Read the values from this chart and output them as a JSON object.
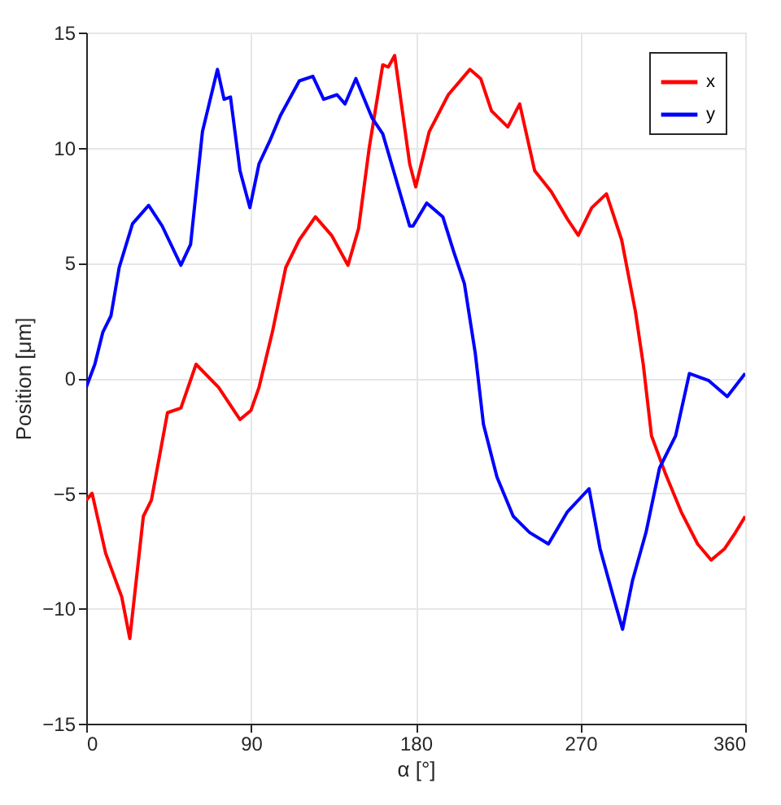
{
  "chart_data": {
    "type": "line",
    "xlabel": "α [°]",
    "ylabel": "Position [μm]",
    "xlim": [
      0,
      360
    ],
    "xticks": [
      0,
      90,
      180,
      270,
      360
    ],
    "ylim": [
      -15,
      15
    ],
    "yticks": [
      -15,
      -10,
      -5,
      0,
      5,
      10,
      15
    ],
    "grid": true,
    "legend": "top right",
    "line_style": "solid",
    "marker": "none",
    "series": [
      {
        "name": "x",
        "color": "#ff0000",
        "x": [
          0,
          3.2,
          10.6,
          19.4,
          23.8,
          31.2,
          35.6,
          44.4,
          51.7,
          60,
          72.3,
          84,
          90,
          94.4,
          101.7,
          109,
          116.4,
          125.2,
          134,
          143,
          148.8,
          154.6,
          162,
          165,
          168.5,
          176.7,
          180,
          187.4,
          197.8,
          209.6,
          215.5,
          221.4,
          230.3,
          236.8,
          245,
          254,
          262.9,
          268.8,
          276.2,
          284.2,
          292.5,
          300,
          304.3,
          308.8,
          316.2,
          325,
          334,
          341.4,
          348.8,
          354.7,
          360
        ],
        "values": [
          -5.3,
          -5.0,
          -7.6,
          -9.5,
          -11.3,
          -6.0,
          -5.3,
          -1.5,
          -1.3,
          0.6,
          -0.4,
          -1.8,
          -1.4,
          -0.4,
          2.0,
          4.8,
          6.0,
          7.0,
          6.2,
          4.9,
          6.5,
          10,
          13.6,
          13.5,
          14.0,
          9.3,
          8.3,
          10.7,
          12.3,
          13.4,
          13.0,
          11.6,
          10.9,
          11.9,
          9.0,
          8.1,
          6.9,
          6.2,
          7.4,
          8.0,
          6.0,
          2.9,
          0.6,
          -2.5,
          -4.1,
          -5.8,
          -7.2,
          -7.9,
          -7.4,
          -6.7,
          -6.0
        ]
      },
      {
        "name": "y",
        "color": "#0000ff",
        "x": [
          0,
          4.7,
          9.1,
          13.5,
          18,
          25.3,
          34.1,
          41.5,
          51.7,
          57,
          63.5,
          71.7,
          75.3,
          78.8,
          84,
          89.4,
          94.4,
          100.3,
          106.1,
          116.4,
          123.8,
          129.7,
          137,
          141.4,
          147.3,
          156.1,
          162,
          167.9,
          176.7,
          178.5,
          186,
          194.8,
          200.7,
          206.6,
          212.5,
          217,
          224.4,
          233.3,
          242.2,
          252.5,
          262.9,
          274.7,
          280.7,
          288,
          293,
          298.4,
          305.8,
          313.2,
          322,
          329.5,
          339.9,
          350.2,
          360
        ],
        "values": [
          -0.4,
          0.6,
          2.0,
          2.7,
          4.8,
          6.7,
          7.5,
          6.6,
          4.9,
          5.8,
          10.7,
          13.4,
          12.1,
          12.2,
          9.0,
          7.4,
          9.3,
          10.3,
          11.4,
          12.9,
          13.1,
          12.1,
          12.3,
          11.9,
          13.0,
          11.3,
          10.6,
          9.0,
          6.6,
          6.6,
          7.6,
          7.0,
          5.5,
          4.1,
          1.1,
          -2.0,
          -4.3,
          -6.0,
          -6.7,
          -7.2,
          -5.8,
          -4.8,
          -7.4,
          -9.5,
          -10.9,
          -8.8,
          -6.7,
          -3.9,
          -2.5,
          0.2,
          -0.1,
          -0.8,
          0.2
        ]
      }
    ]
  }
}
